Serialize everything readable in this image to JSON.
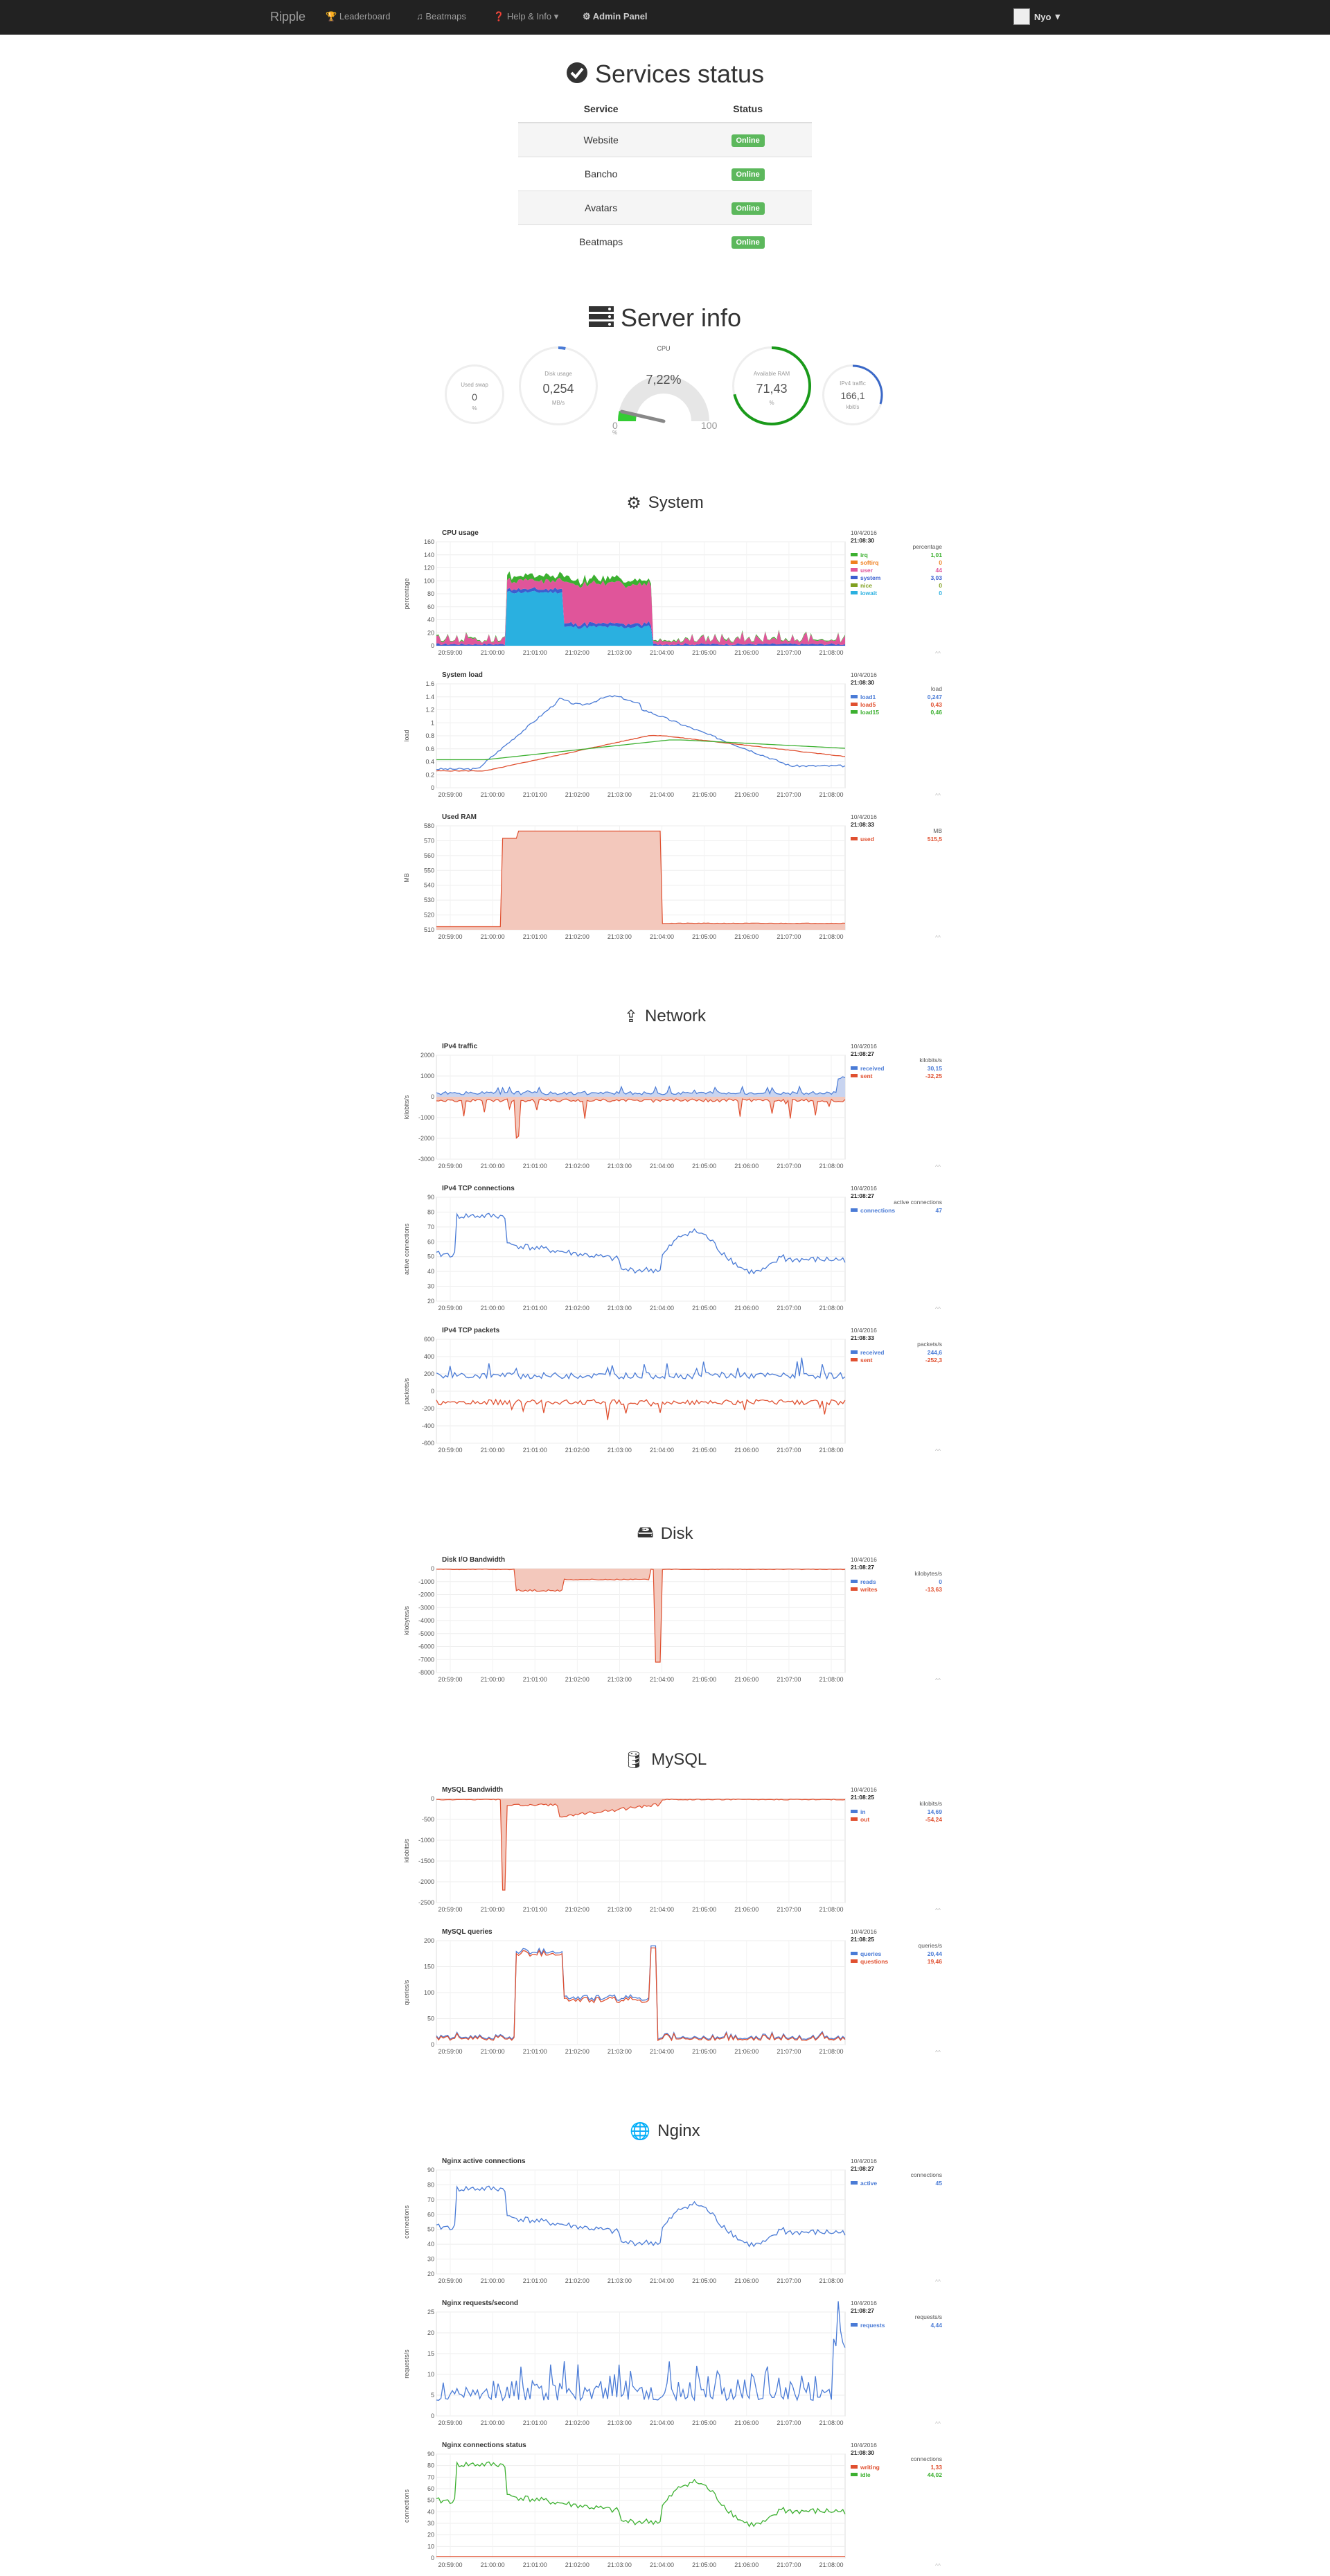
{
  "navbar": {
    "brand": "Ripple",
    "links": [
      "Leaderboard",
      "Beatmaps",
      "Help & Info",
      "Admin Panel"
    ],
    "user": "Nyo"
  },
  "services": {
    "title": "Services status",
    "headers": [
      "Service",
      "Status"
    ],
    "rows": [
      {
        "name": "Website",
        "status": "Online"
      },
      {
        "name": "Bancho",
        "status": "Online"
      },
      {
        "name": "Avatars",
        "status": "Online"
      },
      {
        "name": "Beatmaps",
        "status": "Online"
      }
    ]
  },
  "server_info": {
    "title": "Server info",
    "gauges": {
      "swap": {
        "label": "Used swap",
        "value": "0",
        "unit": "%",
        "fraction": 0
      },
      "disk": {
        "label": "Disk usage",
        "value": "0,254",
        "unit": "MB/s",
        "fraction": 0.03
      },
      "cpu": {
        "label": "CPU",
        "value": "7,22%",
        "min": "0",
        "max": "100",
        "unit": "%",
        "fraction": 0.0722
      },
      "ram": {
        "label": "Available RAM",
        "value": "71,43",
        "unit": "%",
        "fraction": 0.7143
      },
      "net": {
        "label": "IPv4 traffic",
        "value": "166,1",
        "unit": "kbit/s",
        "fraction": 0.3
      }
    }
  },
  "sections": {
    "system": "System",
    "network": "Network",
    "disk": "Disk",
    "mysql": "MySQL",
    "nginx": "Nginx"
  },
  "x_ticks": [
    "20:59:00",
    "21:00:00",
    "21:01:00",
    "21:02:00",
    "21:03:00",
    "21:04:00",
    "21:05:00",
    "21:06:00",
    "21:07:00",
    "21:08:00"
  ],
  "colors": {
    "blue": "#4a7bd6",
    "red": "#e05030",
    "green": "#3cb030",
    "pink": "#e0559a",
    "cyan": "#2ab0e0",
    "orange": "#f08020",
    "olive": "#80a020",
    "salmon": "#f0b0a0"
  },
  "charts": [
    {
      "key": "cpu",
      "title": "CPU usage",
      "date": "10/4/2016",
      "time": "21:08:30",
      "unit": "percentage",
      "ylabel": "percentage",
      "yticks": [
        "160",
        "140",
        "120",
        "100",
        "80",
        "60",
        "40",
        "20",
        "0"
      ],
      "legend": [
        {
          "name": "irq",
          "value": "1,01",
          "color": "#3cb030"
        },
        {
          "name": "softirq",
          "value": "0",
          "color": "#f08020"
        },
        {
          "name": "user",
          "value": "44",
          "color": "#e0559a"
        },
        {
          "name": "system",
          "value": "3,03",
          "color": "#3a5fd0"
        },
        {
          "name": "nice",
          "value": "0",
          "color": "#80a020"
        },
        {
          "name": "iowait",
          "value": "0",
          "color": "#2ab0e0"
        }
      ]
    },
    {
      "key": "load",
      "title": "System load",
      "date": "10/4/2016",
      "time": "21:08:30",
      "unit": "load",
      "ylabel": "load",
      "yticks": [
        "1.6",
        "1.4",
        "1.2",
        "1",
        "0.8",
        "0.6",
        "0.4",
        "0.2",
        "0"
      ],
      "legend": [
        {
          "name": "load1",
          "value": "0,247",
          "color": "#4a7bd6"
        },
        {
          "name": "load5",
          "value": "0,43",
          "color": "#e05030"
        },
        {
          "name": "load15",
          "value": "0,46",
          "color": "#3cb030"
        }
      ]
    },
    {
      "key": "ram",
      "title": "Used RAM",
      "date": "10/4/2016",
      "time": "21:08:33",
      "unit": "MB",
      "ylabel": "MB",
      "yticks": [
        "580",
        "570",
        "560",
        "550",
        "540",
        "530",
        "520",
        "510"
      ],
      "legend": [
        {
          "name": "used",
          "value": "515,5",
          "color": "#e05030"
        }
      ]
    },
    {
      "key": "ipv4",
      "title": "IPv4 traffic",
      "date": "10/4/2016",
      "time": "21:08:27",
      "unit": "kilobits/s",
      "ylabel": "kilobits/s",
      "yticks": [
        "2000",
        "1000",
        "0",
        "-1000",
        "-2000",
        "-3000"
      ],
      "legend": [
        {
          "name": "received",
          "value": "30,15",
          "color": "#4a7bd6"
        },
        {
          "name": "sent",
          "value": "-32,25",
          "color": "#e05030"
        }
      ]
    },
    {
      "key": "tcpconn",
      "title": "IPv4 TCP connections",
      "date": "10/4/2016",
      "time": "21:08:27",
      "unit": "active connections",
      "ylabel": "active connections",
      "yticks": [
        "90",
        "80",
        "70",
        "60",
        "50",
        "40",
        "30",
        "20"
      ],
      "legend": [
        {
          "name": "connections",
          "value": "47",
          "color": "#4a7bd6"
        }
      ]
    },
    {
      "key": "tcppkt",
      "title": "IPv4 TCP packets",
      "date": "10/4/2016",
      "time": "21:08:33",
      "unit": "packets/s",
      "ylabel": "packets/s",
      "yticks": [
        "600",
        "400",
        "200",
        "0",
        "-200",
        "-400",
        "-600"
      ],
      "legend": [
        {
          "name": "received",
          "value": "244,6",
          "color": "#4a7bd6"
        },
        {
          "name": "sent",
          "value": "-252,3",
          "color": "#e05030"
        }
      ]
    },
    {
      "key": "diskio",
      "title": "Disk I/O Bandwidth",
      "date": "10/4/2016",
      "time": "21:08:27",
      "unit": "kilobytes/s",
      "ylabel": "kilobytes/s",
      "yticks": [
        "0",
        "-1000",
        "-2000",
        "-3000",
        "-4000",
        "-5000",
        "-6000",
        "-7000",
        "-8000"
      ],
      "legend": [
        {
          "name": "reads",
          "value": "0",
          "color": "#4a7bd6"
        },
        {
          "name": "writes",
          "value": "-13,63",
          "color": "#e05030"
        }
      ]
    },
    {
      "key": "mysqlbw",
      "title": "MySQL Bandwidth",
      "date": "10/4/2016",
      "time": "21:08:25",
      "unit": "kilobits/s",
      "ylabel": "kilobits/s",
      "yticks": [
        "0",
        "-500",
        "-1000",
        "-1500",
        "-2000",
        "-2500"
      ],
      "legend": [
        {
          "name": "in",
          "value": "14,69",
          "color": "#4a7bd6"
        },
        {
          "name": "out",
          "value": "-54,24",
          "color": "#e05030"
        }
      ]
    },
    {
      "key": "mysqlq",
      "title": "MySQL queries",
      "date": "10/4/2016",
      "time": "21:08:25",
      "unit": "queries/s",
      "ylabel": "queries/s",
      "yticks": [
        "200",
        "150",
        "100",
        "50",
        "0"
      ],
      "legend": [
        {
          "name": "queries",
          "value": "20,44",
          "color": "#4a7bd6"
        },
        {
          "name": "questions",
          "value": "19,46",
          "color": "#e05030"
        }
      ]
    },
    {
      "key": "nginxconn",
      "title": "Nginx active connections",
      "date": "10/4/2016",
      "time": "21:08:27",
      "unit": "connections",
      "ylabel": "connections",
      "yticks": [
        "90",
        "80",
        "70",
        "60",
        "50",
        "40",
        "30",
        "20"
      ],
      "legend": [
        {
          "name": "active",
          "value": "45",
          "color": "#4a7bd6"
        }
      ]
    },
    {
      "key": "nginxreq",
      "title": "Nginx requests/second",
      "date": "10/4/2016",
      "time": "21:08:27",
      "unit": "requests/s",
      "ylabel": "requests/s",
      "yticks": [
        "25",
        "20",
        "15",
        "10",
        "5",
        "0"
      ],
      "legend": [
        {
          "name": "requests",
          "value": "4,44",
          "color": "#4a7bd6"
        }
      ]
    },
    {
      "key": "nginxstatus",
      "title": "Nginx connections status",
      "date": "10/4/2016",
      "time": "21:08:30",
      "unit": "connections",
      "ylabel": "connections",
      "yticks": [
        "90",
        "80",
        "70",
        "60",
        "50",
        "40",
        "30",
        "20",
        "10",
        "0"
      ],
      "legend": [
        {
          "name": "writing",
          "value": "1,33",
          "color": "#e05030"
        },
        {
          "name": "idle",
          "value": "44,02",
          "color": "#3cb030"
        }
      ]
    }
  ]
}
